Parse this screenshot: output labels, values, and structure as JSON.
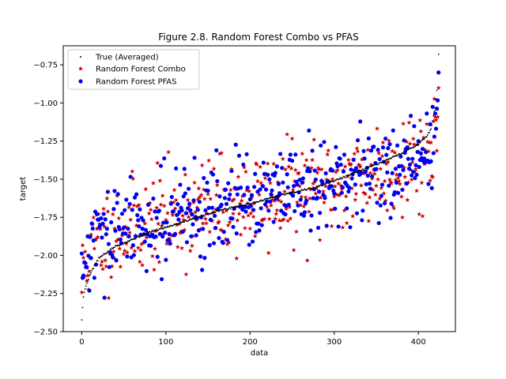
{
  "chart_data": {
    "type": "scatter",
    "title": "Figure 2.8. Random Forest Combo vs PFAS",
    "xlabel": "data",
    "ylabel": "target",
    "xlim": [
      -22,
      444
    ],
    "ylim": [
      -2.5,
      -0.625
    ],
    "xticks": [
      0,
      100,
      200,
      300,
      400
    ],
    "yticks": [
      -2.5,
      -2.25,
      -2.0,
      -1.75,
      -1.5,
      -1.25,
      -1.0,
      -0.75
    ],
    "xtick_labels": [
      "0",
      "100",
      "200",
      "300",
      "400"
    ],
    "ytick_labels": [
      "−2.50",
      "−2.25",
      "−2.00",
      "−1.75",
      "−1.50",
      "−1.25",
      "−1.00",
      "−0.75"
    ],
    "legend_position": "top-left",
    "n_points": 425,
    "series": [
      {
        "name": "True (Averaged)",
        "marker": "dot",
        "color": "#000000",
        "x_start": 0,
        "x_end": 424,
        "y_anchors_x": [
          0,
          2,
          5,
          10,
          20,
          40,
          80,
          120,
          160,
          200,
          240,
          280,
          320,
          360,
          380,
          400,
          410,
          415,
          420,
          422,
          424
        ],
        "y_anchors_y": [
          -2.42,
          -2.27,
          -2.2,
          -2.12,
          -2.02,
          -1.94,
          -1.85,
          -1.78,
          -1.71,
          -1.66,
          -1.6,
          -1.55,
          -1.47,
          -1.38,
          -1.33,
          -1.27,
          -1.22,
          -1.17,
          -1.03,
          -0.92,
          -0.68
        ]
      },
      {
        "name": "Random Forest Combo",
        "marker": "star",
        "color": "#cc0000",
        "spread": 0.16,
        "bias": 0.0,
        "seed": 11
      },
      {
        "name": "Random Forest PFAS",
        "marker": "circle",
        "color": "#0000ee",
        "spread": 0.15,
        "bias": 0.0,
        "seed": 29
      }
    ]
  }
}
